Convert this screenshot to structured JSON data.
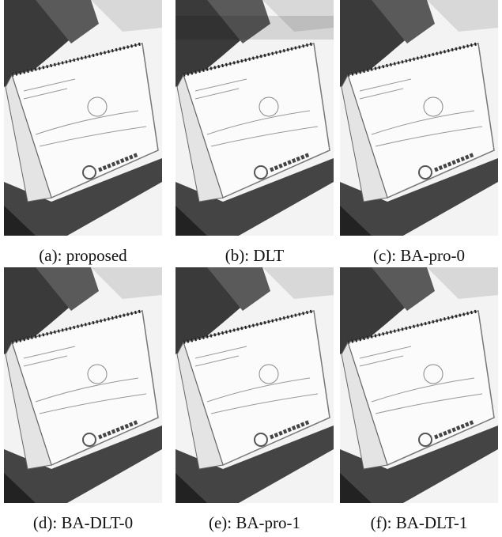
{
  "figure": {
    "panels": [
      {
        "caption": "(a): proposed"
      },
      {
        "caption": "(b): DLT"
      },
      {
        "caption": "(c): BA-pro-0"
      },
      {
        "caption": "(d): BA-DLT-0"
      },
      {
        "caption": "(e): BA-pro-1"
      },
      {
        "caption": "(f): BA-DLT-1"
      }
    ]
  }
}
